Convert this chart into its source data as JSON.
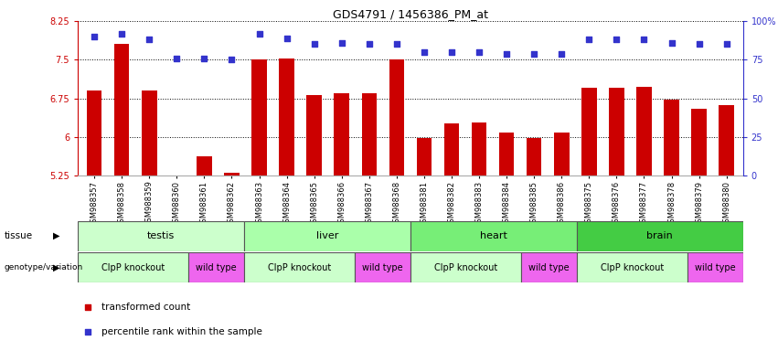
{
  "title": "GDS4791 / 1456386_PM_at",
  "samples": [
    "GSM988357",
    "GSM988358",
    "GSM988359",
    "GSM988360",
    "GSM988361",
    "GSM988362",
    "GSM988363",
    "GSM988364",
    "GSM988365",
    "GSM988366",
    "GSM988367",
    "GSM988368",
    "GSM988381",
    "GSM988382",
    "GSM988383",
    "GSM988384",
    "GSM988385",
    "GSM988386",
    "GSM988375",
    "GSM988376",
    "GSM988377",
    "GSM988378",
    "GSM988379",
    "GSM988380"
  ],
  "bar_values": [
    6.9,
    7.8,
    6.9,
    5.22,
    5.62,
    5.3,
    7.5,
    7.52,
    6.82,
    6.85,
    6.85,
    7.5,
    5.98,
    6.27,
    6.28,
    6.08,
    5.98,
    6.08,
    6.95,
    6.95,
    6.98,
    6.72,
    6.55,
    6.62
  ],
  "dot_values": [
    90,
    92,
    88,
    76,
    76,
    75,
    92,
    89,
    85,
    86,
    85,
    85,
    80,
    80,
    80,
    79,
    79,
    79,
    88,
    88,
    88,
    86,
    85,
    85
  ],
  "ylim_left": [
    5.25,
    8.25
  ],
  "ylim_right": [
    0,
    100
  ],
  "yticks_left": [
    5.25,
    6.0,
    6.75,
    7.5,
    8.25
  ],
  "ytick_labels_left": [
    "5.25",
    "6",
    "6.75",
    "7.5",
    "8.25"
  ],
  "ytick_labels_right": [
    "0",
    "25",
    "50",
    "75",
    "100%"
  ],
  "yticks_right": [
    0,
    25,
    50,
    75,
    100
  ],
  "bar_color": "#CC0000",
  "dot_color": "#3333CC",
  "tissue_groups": [
    {
      "label": "testis",
      "start": 0,
      "end": 6,
      "color": "#ccffcc"
    },
    {
      "label": "liver",
      "start": 6,
      "end": 12,
      "color": "#aaffaa"
    },
    {
      "label": "heart",
      "start": 12,
      "end": 18,
      "color": "#77ee77"
    },
    {
      "label": "brain",
      "start": 18,
      "end": 24,
      "color": "#44cc44"
    }
  ],
  "genotype_groups": [
    {
      "label": "ClpP knockout",
      "start": 0,
      "end": 4,
      "color": "#ccffcc"
    },
    {
      "label": "wild type",
      "start": 4,
      "end": 6,
      "color": "#ee66ee"
    },
    {
      "label": "ClpP knockout",
      "start": 6,
      "end": 10,
      "color": "#ccffcc"
    },
    {
      "label": "wild type",
      "start": 10,
      "end": 12,
      "color": "#ee66ee"
    },
    {
      "label": "ClpP knockout",
      "start": 12,
      "end": 16,
      "color": "#ccffcc"
    },
    {
      "label": "wild type",
      "start": 16,
      "end": 18,
      "color": "#ee66ee"
    },
    {
      "label": "ClpP knockout",
      "start": 18,
      "end": 22,
      "color": "#ccffcc"
    },
    {
      "label": "wild type",
      "start": 22,
      "end": 24,
      "color": "#ee66ee"
    }
  ],
  "legend": [
    {
      "label": "transformed count",
      "color": "#CC0000"
    },
    {
      "label": "percentile rank within the sample",
      "color": "#3333CC"
    }
  ]
}
